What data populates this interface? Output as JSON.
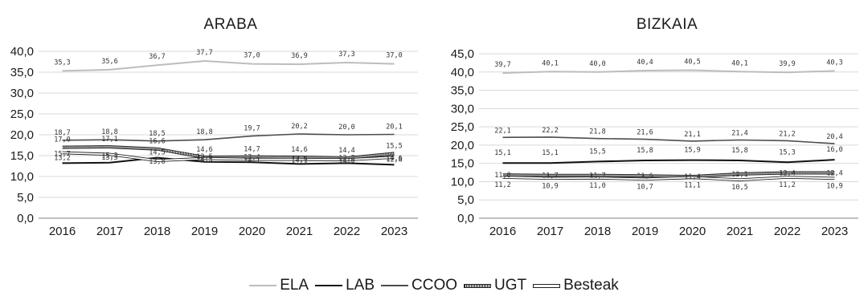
{
  "chart_data": [
    {
      "type": "line",
      "title": "ARABA",
      "categories": [
        "2016",
        "2017",
        "2018",
        "2019",
        "2020",
        "2021",
        "2022",
        "2023"
      ],
      "ylim": [
        0,
        40
      ],
      "yticks": [
        "0,0",
        "5,0",
        "10,0",
        "15,0",
        "20,0",
        "25,0",
        "30,0",
        "35,0",
        "40,0"
      ],
      "ystep": 5,
      "grid": true,
      "series": [
        {
          "name": "ELA",
          "values": [
            35.3,
            35.6,
            36.7,
            37.7,
            37.0,
            36.9,
            37.3,
            37.0
          ],
          "labels": [
            "35,3",
            "35,6",
            "36,7",
            "37,7",
            "37,0",
            "36,9",
            "37,3",
            "37,0"
          ]
        },
        {
          "name": "LAB",
          "values": [
            13.2,
            13.3,
            14.5,
            13.5,
            13.4,
            13.0,
            13.2,
            12.8
          ],
          "labels": [
            "13,2",
            "13,3",
            "14,5",
            "13,5",
            "13,4",
            "13,0",
            "13,2",
            "12,8"
          ]
        },
        {
          "name": "CCOO",
          "values": [
            18.7,
            18.8,
            18.5,
            18.8,
            19.7,
            20.2,
            20.0,
            20.1
          ],
          "labels": [
            "18,7",
            "18,8",
            "18,5",
            "18,8",
            "19,7",
            "20,2",
            "20,0",
            "20,1"
          ]
        },
        {
          "name": "UGT",
          "values": [
            17.0,
            17.1,
            16.6,
            14.6,
            14.7,
            14.6,
            14.4,
            15.5
          ],
          "labels": [
            "17,0",
            "17,1",
            "16,6",
            "14,6",
            "14,7",
            "14,6",
            "14,4",
            "15,5"
          ]
        },
        {
          "name": "Besteak",
          "values": [
            15.7,
            15.3,
            13.8,
            14.3,
            14.1,
            14.1,
            14.0,
            14.6
          ],
          "labels": [
            "15,7",
            "15,3",
            "13,8",
            "14,3",
            "14,1",
            "14,1",
            "14,0",
            "14,6"
          ]
        }
      ]
    },
    {
      "type": "line",
      "title": "BIZKAIA",
      "categories": [
        "2016",
        "2017",
        "2018",
        "2019",
        "2020",
        "2021",
        "2022",
        "2023"
      ],
      "ylim": [
        0,
        45
      ],
      "yticks": [
        "0,0",
        "5,0",
        "10,0",
        "15,0",
        "20,0",
        "25,0",
        "30,0",
        "35,0",
        "40,0",
        "45,0"
      ],
      "ystep": 5,
      "grid": true,
      "series": [
        {
          "name": "ELA",
          "values": [
            39.7,
            40.1,
            40.0,
            40.4,
            40.5,
            40.1,
            39.9,
            40.3
          ],
          "labels": [
            "39,7",
            "40,1",
            "40,0",
            "40,4",
            "40,5",
            "40,1",
            "39,9",
            "40,3"
          ]
        },
        {
          "name": "LAB",
          "values": [
            15.1,
            15.1,
            15.5,
            15.8,
            15.9,
            15.8,
            15.3,
            16.0
          ],
          "labels": [
            "15,1",
            "15,1",
            "15,5",
            "15,8",
            "15,9",
            "15,8",
            "15,3",
            "16,0"
          ]
        },
        {
          "name": "CCOO",
          "values": [
            22.1,
            22.2,
            21.8,
            21.6,
            21.1,
            21.4,
            21.2,
            20.4
          ],
          "labels": [
            "22,1",
            "22,2",
            "21,8",
            "21,6",
            "21,1",
            "21,4",
            "21,2",
            "20,4"
          ]
        },
        {
          "name": "UGT",
          "values": [
            11.8,
            11.7,
            11.7,
            11.6,
            11.4,
            12.1,
            12.4,
            12.4
          ],
          "labels": [
            "11,8",
            "11,7",
            "11,7",
            "11,6",
            "11,4",
            "12,1",
            "12,4",
            "12,4"
          ]
        },
        {
          "name": "Besteak",
          "values": [
            11.2,
            10.9,
            11.0,
            10.7,
            11.1,
            10.5,
            11.2,
            10.9
          ],
          "labels": [
            "11,2",
            "10,9",
            "11,0",
            "10,7",
            "11,1",
            "10,5",
            "11,2",
            "10,9"
          ]
        }
      ]
    }
  ],
  "legend": {
    "placement": "bottom-center",
    "items": [
      {
        "name": "ELA",
        "style": "ela"
      },
      {
        "name": "LAB",
        "style": "lab"
      },
      {
        "name": "CCOO",
        "style": "ccoo"
      },
      {
        "name": "UGT",
        "style": "ugt"
      },
      {
        "name": "Besteak",
        "style": "besteak"
      }
    ]
  },
  "colors": {
    "ELA": "#bdbdbd",
    "LAB": "#111111",
    "CCOO": "#4d4d4d",
    "UGT": "#222222",
    "Besteak": "#222222",
    "grid": "#d9d9d9"
  }
}
